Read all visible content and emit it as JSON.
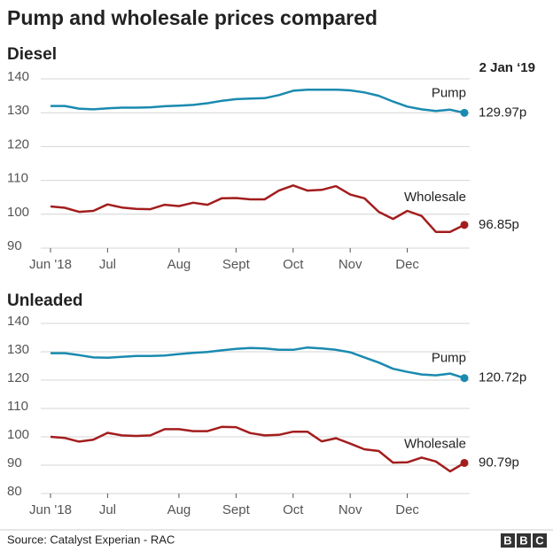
{
  "title": "Pump and wholesale prices compared",
  "date_label": "2 Jan ‘19",
  "source": "Source: Catalyst Experian - RAC",
  "logo": "BBC",
  "chart_data": [
    {
      "type": "line",
      "title": "Diesel",
      "categories": [
        "Jun '18",
        null,
        null,
        null,
        "Jul",
        null,
        null,
        null,
        null,
        "Aug",
        null,
        null,
        null,
        "Sept",
        null,
        null,
        null,
        "Oct",
        null,
        null,
        null,
        "Nov",
        null,
        null,
        null,
        "Dec",
        null,
        null,
        null,
        null
      ],
      "ylim": [
        90,
        140
      ],
      "yticks": [
        90,
        100,
        110,
        120,
        130,
        140
      ],
      "grid": true,
      "series": [
        {
          "name": "Pump",
          "color": "#1a8ab0",
          "values": [
            132,
            132,
            131.2,
            131,
            131.3,
            131.5,
            131.5,
            131.6,
            131.9,
            132.1,
            132.3,
            132.8,
            133.5,
            134,
            134.2,
            134.3,
            135.2,
            136.5,
            136.8,
            136.8,
            136.8,
            136.6,
            136,
            135,
            133.3,
            131.8,
            131,
            130.5,
            130.9,
            129.97
          ],
          "value_labels": [
            null,
            null,
            null,
            null,
            null,
            null,
            null,
            null,
            null,
            null,
            null,
            null,
            null,
            null,
            null,
            null,
            null,
            null,
            null,
            null,
            null,
            null,
            null,
            null,
            null,
            null,
            null,
            null,
            null,
            "129.97p"
          ]
        },
        {
          "name": "Wholesale",
          "color": "#a31d1d",
          "values": [
            102.3,
            101.9,
            100.7,
            101,
            102.9,
            102,
            101.6,
            101.5,
            102.8,
            102.4,
            103.4,
            102.8,
            104.7,
            104.8,
            104.4,
            104.4,
            107,
            108.5,
            107,
            107.2,
            108.3,
            105.8,
            104.7,
            100.7,
            98.6,
            101,
            99.5,
            94.8,
            94.8,
            96.85
          ],
          "value_labels": [
            null,
            null,
            null,
            null,
            null,
            null,
            null,
            null,
            null,
            null,
            null,
            null,
            null,
            null,
            null,
            null,
            null,
            null,
            null,
            null,
            null,
            null,
            null,
            null,
            null,
            null,
            null,
            null,
            null,
            "96.85p"
          ]
        }
      ]
    },
    {
      "type": "line",
      "title": "Unleaded",
      "categories": [
        "Jun '18",
        null,
        null,
        null,
        "Jul",
        null,
        null,
        null,
        null,
        "Aug",
        null,
        null,
        null,
        "Sept",
        null,
        null,
        null,
        "Oct",
        null,
        null,
        null,
        "Nov",
        null,
        null,
        null,
        "Dec",
        null,
        null,
        null,
        null
      ],
      "ylim": [
        80,
        140
      ],
      "yticks": [
        80,
        90,
        100,
        110,
        120,
        130,
        140
      ],
      "grid": true,
      "series": [
        {
          "name": "Pump",
          "color": "#1a8ab0",
          "values": [
            129.5,
            129.5,
            128.8,
            128,
            127.9,
            128.2,
            128.5,
            128.5,
            128.7,
            129.2,
            129.6,
            129.9,
            130.5,
            131,
            131.3,
            131.2,
            130.7,
            130.7,
            131.5,
            131.2,
            130.7,
            129.8,
            128,
            126.2,
            124,
            122.9,
            122,
            121.7,
            122.3,
            120.72
          ],
          "value_labels": [
            null,
            null,
            null,
            null,
            null,
            null,
            null,
            null,
            null,
            null,
            null,
            null,
            null,
            null,
            null,
            null,
            null,
            null,
            null,
            null,
            null,
            null,
            null,
            null,
            null,
            null,
            null,
            null,
            null,
            "120.72p"
          ]
        },
        {
          "name": "Wholesale",
          "color": "#a31d1d",
          "values": [
            100,
            99.6,
            98.3,
            99,
            101.4,
            100.5,
            100.3,
            100.5,
            102.7,
            102.7,
            102,
            102,
            103.5,
            103.4,
            101.3,
            100.5,
            100.7,
            101.8,
            101.8,
            98.4,
            99.5,
            97.6,
            95.6,
            95,
            90.9,
            91,
            92.7,
            91.3,
            87.8,
            90.79
          ],
          "value_labels": [
            null,
            null,
            null,
            null,
            null,
            null,
            null,
            null,
            null,
            null,
            null,
            null,
            null,
            null,
            null,
            null,
            null,
            null,
            null,
            null,
            null,
            null,
            null,
            null,
            null,
            null,
            null,
            null,
            null,
            "90.79p"
          ]
        }
      ]
    }
  ]
}
